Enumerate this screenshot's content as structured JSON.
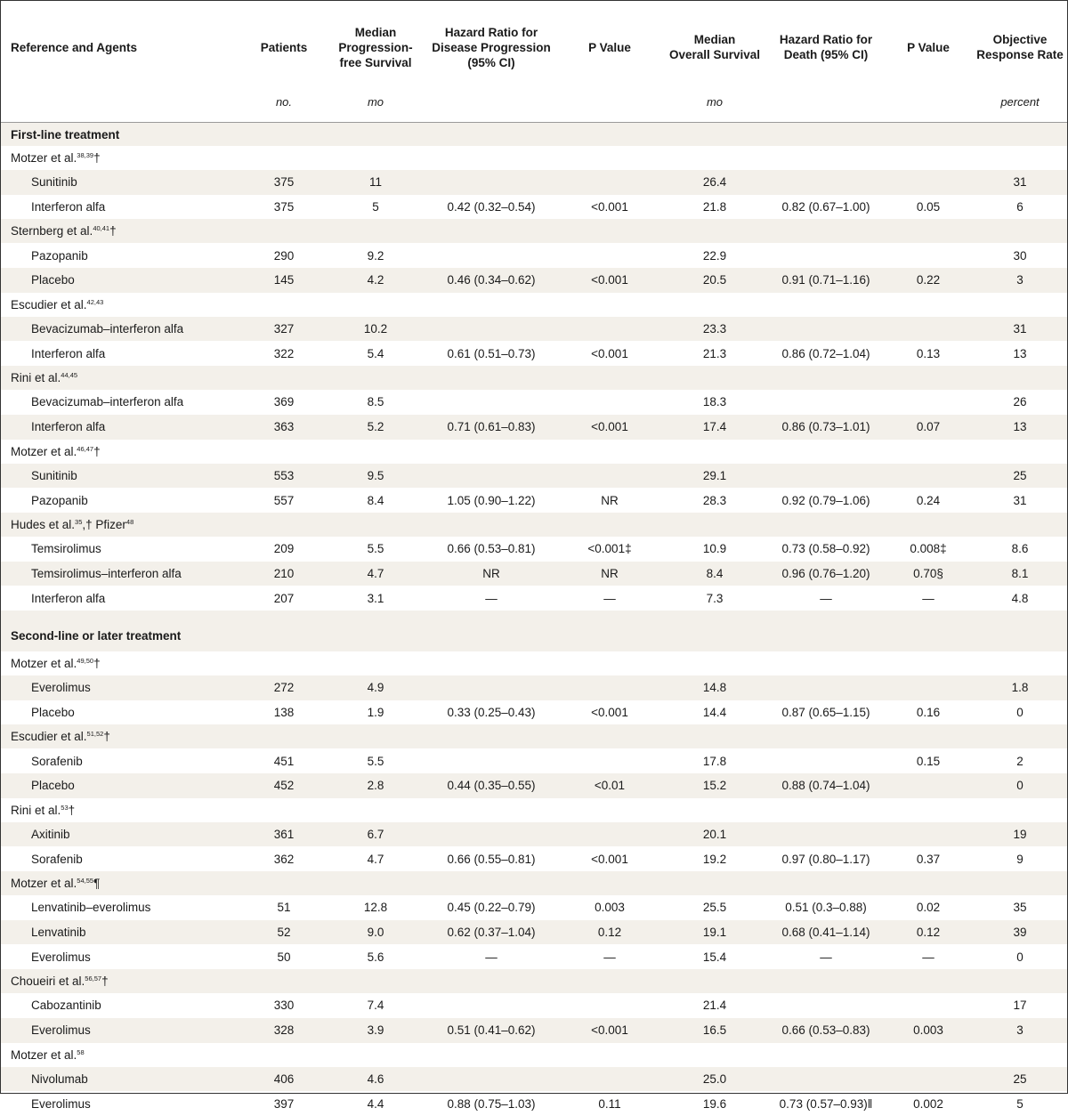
{
  "headers": {
    "reference": "Reference and Agents",
    "patients": "Patients",
    "pfs": [
      "Median",
      "Progression-",
      "free Survival"
    ],
    "hr_progression": [
      "Hazard Ratio for",
      "Disease Progression",
      "(95% CI)"
    ],
    "p_value_1": "P Value",
    "os": [
      "Median",
      "Overall Survival"
    ],
    "hr_death": [
      "Hazard Ratio for",
      "Death (95% CI)"
    ],
    "p_value_2": "P Value",
    "orr": [
      "Objective",
      "Response Rate"
    ]
  },
  "units": {
    "patients": "no.",
    "pfs": "mo",
    "os": "mo",
    "orr": "percent"
  },
  "sections": [
    {
      "title": "First-line treatment",
      "studies": [
        {
          "name": "Motzer et al.",
          "refs": "38,39",
          "mark": "†",
          "mark2": "",
          "rows": [
            {
              "agent": "Sunitinib",
              "patients": "375",
              "pfs": "11",
              "hr_prog": "",
              "p1": "",
              "os": "26.4",
              "hr_death": "",
              "p2": "",
              "orr": "31"
            },
            {
              "agent": "Interferon alfa",
              "patients": "375",
              "pfs": "5",
              "hr_prog": "0.42 (0.32–0.54)",
              "p1": "<0.001",
              "os": "21.8",
              "hr_death": "0.82 (0.67–1.00)",
              "p2": "0.05",
              "orr": "6"
            }
          ]
        },
        {
          "name": "Sternberg et al.",
          "refs": "40,41",
          "mark": "†",
          "mark2": "",
          "rows": [
            {
              "agent": "Pazopanib",
              "patients": "290",
              "pfs": "9.2",
              "hr_prog": "",
              "p1": "",
              "os": "22.9",
              "hr_death": "",
              "p2": "",
              "orr": "30"
            },
            {
              "agent": "Placebo",
              "patients": "145",
              "pfs": "4.2",
              "hr_prog": "0.46 (0.34–0.62)",
              "p1": "<0.001",
              "os": "20.5",
              "hr_death": "0.91 (0.71–1.16)",
              "p2": "0.22",
              "orr": "3"
            }
          ]
        },
        {
          "name": "Escudier et al.",
          "refs": "42,43",
          "mark": "",
          "mark2": "",
          "rows": [
            {
              "agent": "Bevacizumab–interferon alfa",
              "patients": "327",
              "pfs": "10.2",
              "hr_prog": "",
              "p1": "",
              "os": "23.3",
              "hr_death": "",
              "p2": "",
              "orr": "31"
            },
            {
              "agent": "Interferon alfa",
              "patients": "322",
              "pfs": "5.4",
              "hr_prog": "0.61 (0.51–0.73)",
              "p1": "<0.001",
              "os": "21.3",
              "hr_death": "0.86 (0.72–1.04)",
              "p2": "0.13",
              "orr": "13"
            }
          ]
        },
        {
          "name": "Rini et al.",
          "refs": "44,45",
          "mark": "",
          "mark2": "",
          "rows": [
            {
              "agent": "Bevacizumab–interferon alfa",
              "patients": "369",
              "pfs": "8.5",
              "hr_prog": "",
              "p1": "",
              "os": "18.3",
              "hr_death": "",
              "p2": "",
              "orr": "26"
            },
            {
              "agent": "Interferon alfa",
              "patients": "363",
              "pfs": "5.2",
              "hr_prog": "0.71 (0.61–0.83)",
              "p1": "<0.001",
              "os": "17.4",
              "hr_death": "0.86 (0.73–1.01)",
              "p2": "0.07",
              "orr": "13"
            }
          ]
        },
        {
          "name": "Motzer et al.",
          "refs": "46,47",
          "mark": "†",
          "mark2": "",
          "rows": [
            {
              "agent": "Sunitinib",
              "patients": "553",
              "pfs": "9.5",
              "hr_prog": "",
              "p1": "",
              "os": "29.1",
              "hr_death": "",
              "p2": "",
              "orr": "25"
            },
            {
              "agent": "Pazopanib",
              "patients": "557",
              "pfs": "8.4",
              "hr_prog": "1.05 (0.90–1.22)",
              "p1": "NR",
              "os": "28.3",
              "hr_death": "0.92 (0.79–1.06)",
              "p2": "0.24",
              "orr": "31"
            }
          ]
        },
        {
          "name": "Hudes et al.",
          "refs": "35",
          "mark": ",† Pfizer",
          "mark2": "48",
          "rows": [
            {
              "agent": "Temsirolimus",
              "patients": "209",
              "pfs": "5.5",
              "hr_prog": "0.66 (0.53–0.81)",
              "p1": "<0.001‡",
              "os": "10.9",
              "hr_death": "0.73 (0.58–0.92)",
              "p2": "0.008‡",
              "orr": "8.6"
            },
            {
              "agent": "Temsirolimus–interferon alfa",
              "patients": "210",
              "pfs": "4.7",
              "hr_prog": "NR",
              "p1": "NR",
              "os": "8.4",
              "hr_death": "0.96 (0.76–1.20)",
              "p2": "0.70§",
              "orr": "8.1"
            },
            {
              "agent": "Interferon alfa",
              "patients": "207",
              "pfs": "3.1",
              "hr_prog": "—",
              "p1": "—",
              "os": "7.3",
              "hr_death": "—",
              "p2": "—",
              "orr": "4.8"
            }
          ]
        }
      ]
    },
    {
      "title": "Second-line or later treatment",
      "studies": [
        {
          "name": "Motzer et al.",
          "refs": "49,50",
          "mark": "†",
          "mark2": "",
          "rows": [
            {
              "agent": "Everolimus",
              "patients": "272",
              "pfs": "4.9",
              "hr_prog": "",
              "p1": "",
              "os": "14.8",
              "hr_death": "",
              "p2": "",
              "orr": "1.8"
            },
            {
              "agent": "Placebo",
              "patients": "138",
              "pfs": "1.9",
              "hr_prog": "0.33 (0.25–0.43)",
              "p1": "<0.001",
              "os": "14.4",
              "hr_death": "0.87 (0.65–1.15)",
              "p2": "0.16",
              "orr": "0"
            }
          ]
        },
        {
          "name": "Escudier et al.",
          "refs": "51,52",
          "mark": "†",
          "mark2": "",
          "rows": [
            {
              "agent": "Sorafenib",
              "patients": "451",
              "pfs": "5.5",
              "hr_prog": "",
              "p1": "",
              "os": "17.8",
              "hr_death": "",
              "p2": "0.15",
              "orr": "2"
            },
            {
              "agent": "Placebo",
              "patients": "452",
              "pfs": "2.8",
              "hr_prog": "0.44 (0.35–0.55)",
              "p1": "<0.01",
              "os": "15.2",
              "hr_death": "0.88 (0.74–1.04)",
              "p2": "",
              "orr": "0"
            }
          ]
        },
        {
          "name": "Rini et al.",
          "refs": "53",
          "mark": "†",
          "mark2": "",
          "rows": [
            {
              "agent": "Axitinib",
              "patients": "361",
              "pfs": "6.7",
              "hr_prog": "",
              "p1": "",
              "os": "20.1",
              "hr_death": "",
              "p2": "",
              "orr": "19"
            },
            {
              "agent": "Sorafenib",
              "patients": "362",
              "pfs": "4.7",
              "hr_prog": "0.66 (0.55–0.81)",
              "p1": "<0.001",
              "os": "19.2",
              "hr_death": "0.97 (0.80–1.17)",
              "p2": "0.37",
              "orr": "9"
            }
          ]
        },
        {
          "name": "Motzer et al.",
          "refs": "54,55",
          "mark": "¶",
          "mark2": "",
          "rows": [
            {
              "agent": "Lenvatinib–everolimus",
              "patients": "51",
              "pfs": "12.8",
              "hr_prog": "0.45 (0.22–0.79)",
              "p1": "0.003",
              "os": "25.5",
              "hr_death": "0.51 (0.3–0.88)",
              "p2": "0.02",
              "orr": "35"
            },
            {
              "agent": "Lenvatinib",
              "patients": "52",
              "pfs": "9.0",
              "hr_prog": "0.62 (0.37–1.04)",
              "p1": "0.12",
              "os": "19.1",
              "hr_death": "0.68 (0.41–1.14)",
              "p2": "0.12",
              "orr": "39"
            },
            {
              "agent": "Everolimus",
              "patients": "50",
              "pfs": "5.6",
              "hr_prog": "—",
              "p1": "—",
              "os": "15.4",
              "hr_death": "—",
              "p2": "—",
              "orr": "0"
            }
          ]
        },
        {
          "name": "Choueiri et al.",
          "refs": "56,57",
          "mark": "†",
          "mark2": "",
          "rows": [
            {
              "agent": "Cabozantinib",
              "patients": "330",
              "pfs": "7.4",
              "hr_prog": "",
              "p1": "",
              "os": "21.4",
              "hr_death": "",
              "p2": "",
              "orr": "17"
            },
            {
              "agent": "Everolimus",
              "patients": "328",
              "pfs": "3.9",
              "hr_prog": "0.51 (0.41–0.62)",
              "p1": "<0.001",
              "os": "16.5",
              "hr_death": "0.66 (0.53–0.83)",
              "p2": "0.003",
              "orr": "3"
            }
          ]
        },
        {
          "name": "Motzer et al.",
          "refs": "58",
          "mark": "",
          "mark2": "",
          "rows": [
            {
              "agent": "Nivolumab",
              "patients": "406",
              "pfs": "4.6",
              "hr_prog": "",
              "p1": "",
              "os": "25.0",
              "hr_death": "",
              "p2": "",
              "orr": "25"
            },
            {
              "agent": "Everolimus",
              "patients": "397",
              "pfs": "4.4",
              "hr_prog": "0.88 (0.75–1.03)",
              "p1": "0.11",
              "os": "19.6",
              "hr_death": "0.73 (0.57–0.93)‖",
              "p2": "0.002",
              "orr": "5"
            }
          ]
        }
      ]
    }
  ]
}
